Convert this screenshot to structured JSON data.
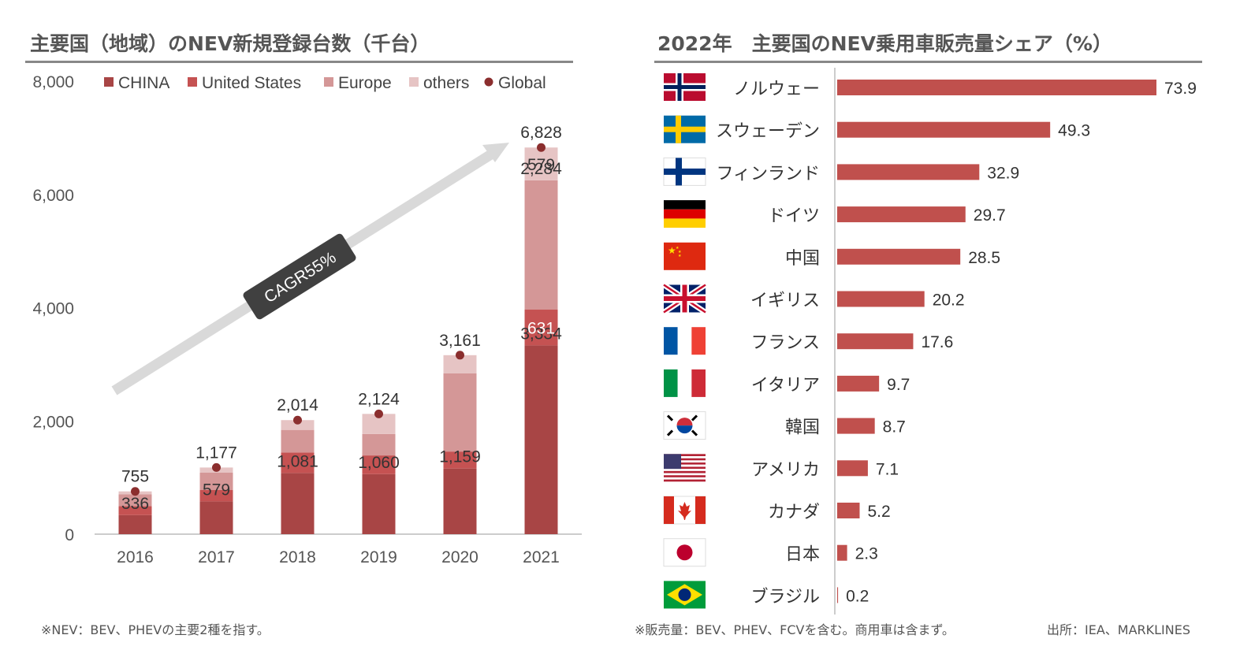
{
  "left_title": "主要国（地域）のNEV新規登録台数（千台）",
  "right_title": "2022年　主要国のNEV乗用車販売量シェア（%）",
  "left_note": "※NEV：BEV、PHEVの主要2種を指す。",
  "right_note": "※販売量：BEV、PHEV、FCVを含む。商用車は含まず。",
  "source_note": "出所：IEA、MARKLINES",
  "chart_data": [
    {
      "type": "bar",
      "stacked": true,
      "title": "主要国（地域）のNEV新規登録台数（千台）",
      "categories": [
        "2016",
        "2017",
        "2018",
        "2019",
        "2020",
        "2021"
      ],
      "series": [
        {
          "name": "CHINA",
          "values": [
            336,
            579,
            1081,
            1060,
            1159,
            3334
          ],
          "color": "#a84545"
        },
        {
          "name": "United States",
          "values": [
            160,
            200,
            360,
            330,
            300,
            631
          ],
          "color": "#c55252"
        },
        {
          "name": "Europe",
          "values": [
            210,
            310,
            400,
            380,
            1380,
            2284
          ],
          "color": "#d49797"
        },
        {
          "name": "others",
          "values": [
            49,
            88,
            173,
            354,
            322,
            579
          ],
          "color": "#e6c4c4"
        }
      ],
      "global": {
        "name": "Global",
        "values": [
          755,
          1177,
          2014,
          2124,
          3161,
          6828
        ],
        "color": "#8b2e2e"
      },
      "ylim": [
        0,
        8000
      ],
      "yticks": [
        "0",
        "2,000",
        "4,000",
        "6,000",
        "8,000"
      ],
      "annotations": [
        "CAGR55%"
      ],
      "legend": "top"
    },
    {
      "type": "bar",
      "orientation": "horizontal",
      "title": "2022年　主要国のNEV乗用車販売量シェア（%）",
      "categories": [
        "ノルウェー",
        "スウェーデン",
        "フィンランド",
        "ドイツ",
        "中国",
        "イギリス",
        "フランス",
        "イタリア",
        "韓国",
        "アメリカ",
        "カナダ",
        "日本",
        "ブラジル"
      ],
      "values": [
        73.9,
        49.3,
        32.9,
        29.7,
        28.5,
        20.2,
        17.6,
        9.7,
        8.7,
        7.1,
        5.2,
        2.3,
        0.2
      ],
      "value_labels": [
        "73.9",
        "49.3",
        "32.9",
        "29.7",
        "28.5",
        "20.2",
        "17.6",
        "9.7",
        "8.7",
        "7.1",
        "5.2",
        "2.3",
        "0.2"
      ],
      "flags": [
        "norway-flag",
        "sweden-flag",
        "finland-flag",
        "germany-flag",
        "china-flag",
        "uk-flag",
        "france-flag",
        "italy-flag",
        "korea-flag",
        "usa-flag",
        "canada-flag",
        "japan-flag",
        "brazil-flag"
      ],
      "color": "#c0504d"
    }
  ]
}
